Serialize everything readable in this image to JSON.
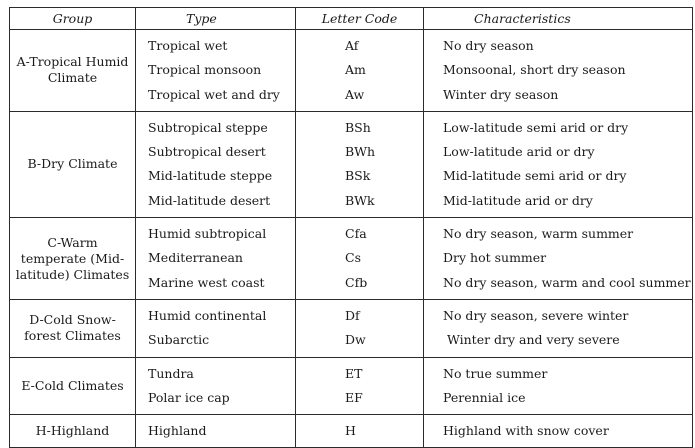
{
  "table": {
    "headers": [
      "Group",
      "Type",
      "Letter Code",
      "Characteristics"
    ],
    "groups": [
      {
        "name": "A-Tropical Humid Climate",
        "types": [
          "Tropical wet",
          "Tropical monsoon",
          "Tropical wet and dry"
        ],
        "codes": [
          "Af",
          "Am",
          "Aw"
        ],
        "chars": [
          "No dry season",
          "Monsoonal, short dry season",
          "Winter dry season"
        ]
      },
      {
        "name": "B-Dry Climate",
        "types": [
          "Subtropical steppe",
          "Subtropical desert",
          "Mid-latitude steppe",
          "Mid-latitude desert"
        ],
        "codes": [
          "BSh",
          "BWh",
          "BSk",
          "BWk"
        ],
        "chars": [
          "Low-latitude semi arid or dry",
          "Low-latitude arid or dry",
          "Mid-latitude semi arid or dry",
          "Mid-latitude arid or dry"
        ]
      },
      {
        "name": "C-Warm temperate (Mid-latitude) Climates",
        "types": [
          "Humid subtropical",
          "Mediterranean",
          "Marine west coast"
        ],
        "codes": [
          "Cfa",
          "Cs",
          "Cfb"
        ],
        "chars": [
          "No dry season, warm summer",
          "Dry hot summer",
          "No dry season, warm and cool summer"
        ]
      },
      {
        "name": "D-Cold Snow-forest Climates",
        "types": [
          "Humid continental",
          "Subarctic"
        ],
        "codes": [
          "Df",
          "Dw"
        ],
        "chars": [
          "No dry season, severe winter",
          "Winter dry and very severe"
        ]
      },
      {
        "name": "E-Cold Climates",
        "types": [
          "Tundra",
          "Polar ice cap"
        ],
        "codes": [
          "ET",
          "EF"
        ],
        "chars": [
          "No true summer",
          "Perennial ice"
        ]
      },
      {
        "name": "H-Highland",
        "types": [
          "Highland"
        ],
        "codes": [
          "H"
        ],
        "chars": [
          "Highland with snow cover"
        ]
      }
    ]
  }
}
